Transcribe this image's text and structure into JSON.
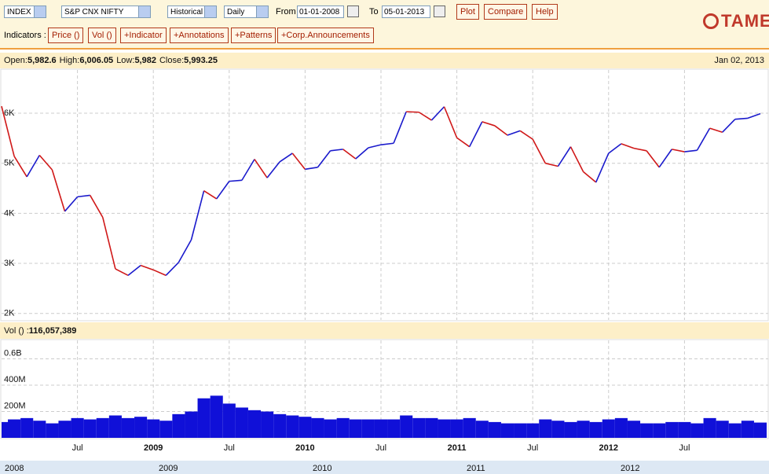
{
  "toolbar": {
    "exchange": "INDEX",
    "symbol": "S&P CNX NIFTY",
    "mode": "Historical",
    "interval": "Daily",
    "from_label": "From",
    "from": "01-01-2008",
    "to_label": "To",
    "to": "05-01-2013",
    "actions": [
      "Plot",
      "Compare",
      "Help"
    ],
    "indicators_label": "Indicators :",
    "indicator_buttons": [
      "Price ()",
      "Vol ()",
      "+Indicator",
      "+Annotations",
      "+Patterns",
      "+Corp.Announcements"
    ],
    "logo": "TAME"
  },
  "chart_data": [
    {
      "type": "line",
      "info": [
        {
          "label": "Open:",
          "value": "5,982.6"
        },
        {
          "label": "High:",
          "value": "6,006.05"
        },
        {
          "label": "Low:",
          "value": "5,982"
        },
        {
          "label": "Close:",
          "value": "5,993.25"
        }
      ],
      "date": "Jan 02, 2013",
      "up_color": "#1a1acc",
      "down_color": "#d01818",
      "x": [
        "2008-01",
        "2008-02",
        "2008-03",
        "2008-04",
        "2008-05",
        "2008-06",
        "2008-07",
        "2008-08",
        "2008-09",
        "2008-10",
        "2008-11",
        "2008-12",
        "2009-01",
        "2009-02",
        "2009-03",
        "2009-04",
        "2009-05",
        "2009-06",
        "2009-07",
        "2009-08",
        "2009-09",
        "2009-10",
        "2009-11",
        "2009-12",
        "2010-01",
        "2010-02",
        "2010-03",
        "2010-04",
        "2010-05",
        "2010-06",
        "2010-07",
        "2010-08",
        "2010-09",
        "2010-10",
        "2010-11",
        "2010-12",
        "2011-01",
        "2011-02",
        "2011-03",
        "2011-04",
        "2011-05",
        "2011-06",
        "2011-07",
        "2011-08",
        "2011-09",
        "2011-10",
        "2011-11",
        "2011-12",
        "2012-01",
        "2012-02",
        "2012-03",
        "2012-04",
        "2012-05",
        "2012-06",
        "2012-07",
        "2012-08",
        "2012-09",
        "2012-10",
        "2012-11",
        "2012-12",
        "2013-01"
      ],
      "values": [
        6140,
        5140,
        4730,
        5160,
        4870,
        4040,
        4330,
        4360,
        3920,
        2890,
        2760,
        2960,
        2870,
        2760,
        3020,
        3470,
        4450,
        4290,
        4640,
        4660,
        5080,
        4710,
        5030,
        5200,
        4880,
        4920,
        5250,
        5280,
        5090,
        5310,
        5370,
        5400,
        6030,
        6020,
        5860,
        6130,
        5510,
        5330,
        5830,
        5750,
        5560,
        5650,
        5480,
        5000,
        4940,
        5330,
        4830,
        4620,
        5200,
        5390,
        5300,
        5250,
        4920,
        5280,
        5230,
        5260,
        5700,
        5620,
        5880,
        5900,
        5990
      ],
      "xlim": [
        "2008-01",
        "2013-01"
      ],
      "xticks": [
        {
          "value": "2008-07",
          "label": "Jul"
        },
        {
          "value": "2009-01",
          "label": "2009"
        },
        {
          "value": "2009-07",
          "label": "Jul"
        },
        {
          "value": "2010-01",
          "label": "2010"
        },
        {
          "value": "2010-07",
          "label": "Jul"
        },
        {
          "value": "2011-01",
          "label": "2011"
        },
        {
          "value": "2011-07",
          "label": "Jul"
        },
        {
          "value": "2012-01",
          "label": "2012"
        },
        {
          "value": "2012-07",
          "label": "Jul"
        }
      ],
      "ylim": [
        1870,
        6880
      ],
      "yticks": [
        {
          "value": 2000,
          "label": "2K"
        },
        {
          "value": 3000,
          "label": "3K"
        },
        {
          "value": 4000,
          "label": "4K"
        },
        {
          "value": 5000,
          "label": "5K"
        },
        {
          "value": 6000,
          "label": "6K"
        }
      ],
      "grid": true
    },
    {
      "type": "bar",
      "label": "Vol () :",
      "current": "116,057,389",
      "color": "#1010d8",
      "values": [
        120000000,
        140000000,
        150000000,
        130000000,
        110000000,
        130000000,
        150000000,
        140000000,
        150000000,
        170000000,
        150000000,
        160000000,
        140000000,
        130000000,
        180000000,
        200000000,
        300000000,
        320000000,
        260000000,
        230000000,
        210000000,
        200000000,
        180000000,
        170000000,
        160000000,
        150000000,
        140000000,
        150000000,
        140000000,
        140000000,
        140000000,
        140000000,
        170000000,
        150000000,
        150000000,
        140000000,
        140000000,
        150000000,
        130000000,
        120000000,
        110000000,
        110000000,
        110000000,
        140000000,
        130000000,
        120000000,
        130000000,
        120000000,
        140000000,
        150000000,
        130000000,
        110000000,
        110000000,
        120000000,
        120000000,
        110000000,
        150000000,
        130000000,
        110000000,
        130000000,
        116000000
      ],
      "ylim": [
        0,
        740000000
      ],
      "yticks": [
        {
          "value": 200000000,
          "label": "200M"
        },
        {
          "value": 400000000,
          "label": "400M"
        },
        {
          "value": 600000000,
          "label": "0.6B"
        }
      ],
      "grid": true
    }
  ],
  "navigator": {
    "labels": [
      "2008",
      "2009",
      "2010",
      "2011",
      "2012"
    ]
  }
}
